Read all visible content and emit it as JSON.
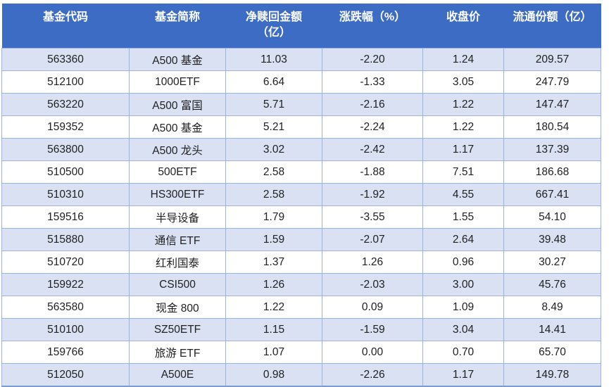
{
  "chart_data": {
    "type": "table",
    "columns": [
      "基金代码",
      "基金简称",
      "净赎回金额\n（亿）",
      "涨跌幅（%）",
      "收盘价",
      "流通份额（亿）"
    ],
    "rows": [
      [
        "563360",
        "A500 基金",
        "11.03",
        "-2.20",
        "1.24",
        "209.57"
      ],
      [
        "512100",
        "1000ETF",
        "6.64",
        "-1.33",
        "3.05",
        "247.79"
      ],
      [
        "563220",
        "A500 富国",
        "5.71",
        "-2.16",
        "1.22",
        "147.47"
      ],
      [
        "159352",
        "A500 基金",
        "5.21",
        "-2.24",
        "1.22",
        "180.54"
      ],
      [
        "563800",
        "A500 龙头",
        "3.02",
        "-2.42",
        "1.17",
        "137.39"
      ],
      [
        "510500",
        "500ETF",
        "2.58",
        "-1.88",
        "7.51",
        "186.68"
      ],
      [
        "510310",
        "HS300ETF",
        "2.58",
        "-1.92",
        "4.55",
        "667.41"
      ],
      [
        "159516",
        "半导设备",
        "1.79",
        "-3.55",
        "1.55",
        "54.10"
      ],
      [
        "515880",
        "通信 ETF",
        "1.59",
        "-2.07",
        "2.64",
        "39.48"
      ],
      [
        "510720",
        "红利国泰",
        "1.37",
        "1.26",
        "0.96",
        "30.27"
      ],
      [
        "159922",
        "CSI500",
        "1.26",
        "-2.03",
        "3.00",
        "45.76"
      ],
      [
        "563580",
        "现金 800",
        "1.22",
        "0.09",
        "1.09",
        "8.49"
      ],
      [
        "510100",
        "SZ50ETF",
        "1.15",
        "-1.59",
        "3.04",
        "14.41"
      ],
      [
        "159766",
        "旅游 ETF",
        "1.07",
        "0.00",
        "0.70",
        "65.70"
      ],
      [
        "512050",
        "A500E",
        "0.98",
        "-2.26",
        "1.17",
        "149.78"
      ]
    ],
    "layout": {
      "banding": "alternate rows shaded starting with first data row",
      "alignment": "center"
    }
  },
  "colors": {
    "header_bg": "#3d6cc4",
    "header_text": "#ffffff",
    "band_bg": "#d9e1f2",
    "white_bg": "#ffffff",
    "border": "#9db3df",
    "border_bottom": "#7e9cd4",
    "text": "#212121"
  }
}
